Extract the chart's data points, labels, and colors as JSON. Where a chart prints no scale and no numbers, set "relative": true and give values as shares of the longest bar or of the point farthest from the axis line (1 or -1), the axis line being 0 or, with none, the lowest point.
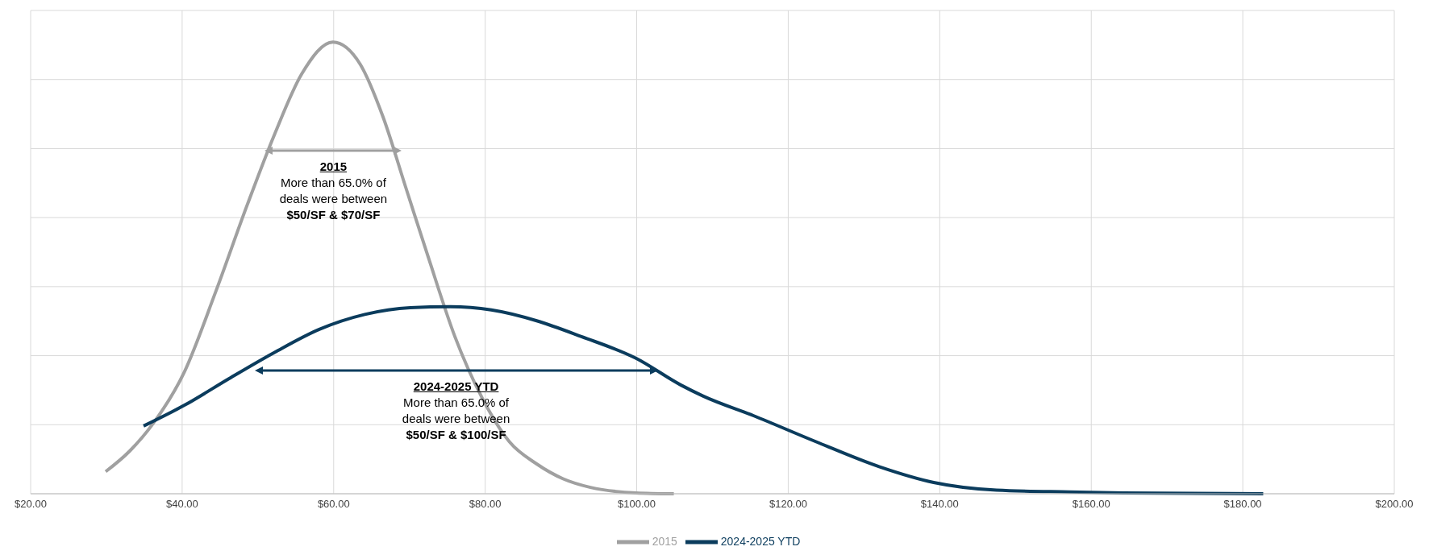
{
  "chart_data": {
    "type": "line",
    "relative": true,
    "grid": true,
    "legend": "bottom",
    "marker": "none",
    "xlim": [
      20,
      200
    ],
    "xticks": [
      {
        "value": 20,
        "label": "$20.00"
      },
      {
        "value": 40,
        "label": "$40.00"
      },
      {
        "value": 60,
        "label": "$60.00"
      },
      {
        "value": 80,
        "label": "$80.00"
      },
      {
        "value": 100,
        "label": "$100.00"
      },
      {
        "value": 120,
        "label": "$120.00"
      },
      {
        "value": 140,
        "label": "$140.00"
      },
      {
        "value": 160,
        "label": "$160.00"
      },
      {
        "value": 180,
        "label": "$180.00"
      },
      {
        "value": 200,
        "label": "$200.00"
      }
    ],
    "series": [
      {
        "name": "2015",
        "color": "#a0a0a0",
        "x": [
          29.9,
          33.1,
          36.1,
          40.3,
          44.4,
          48.6,
          52.2,
          55.8,
          59.9,
          63.5,
          66.5,
          69.5,
          72.5,
          76.0,
          79.6,
          83.2,
          86.8,
          90.3,
          93.9,
          99.9,
          104.9
        ],
        "values": [
          0.049,
          0.095,
          0.154,
          0.27,
          0.446,
          0.64,
          0.796,
          0.93,
          1.0,
          0.951,
          0.835,
          0.679,
          0.523,
          0.348,
          0.212,
          0.115,
          0.066,
          0.033,
          0.014,
          0.002,
          0
        ]
      },
      {
        "name": "2024-2025 YTD",
        "color": "#0b3c5d",
        "x": [
          34.9,
          40.3,
          46.2,
          52.2,
          58.1,
          64.1,
          70.1,
          75.4,
          80.8,
          86.8,
          92.7,
          99.9,
          105.8,
          108.8,
          115.4,
          123.7,
          132.0,
          139.2,
          147.5,
          157.1,
          164.2,
          182.7
        ],
        "values": [
          0.15,
          0.196,
          0.255,
          0.313,
          0.364,
          0.397,
          0.412,
          0.414,
          0.407,
          0.383,
          0.348,
          0.3,
          0.241,
          0.216,
          0.173,
          0.115,
          0.06,
          0.025,
          0.008,
          0.004,
          0.002,
          0
        ]
      }
    ],
    "annotations": [
      "2015\nMore than 65.0% of\ndeals were between\n$50/SF & $70/SF",
      "2024-2025 YTD\nMore than 65.0% of\ndeals were between\n$50/SF & $100/SF"
    ]
  }
}
